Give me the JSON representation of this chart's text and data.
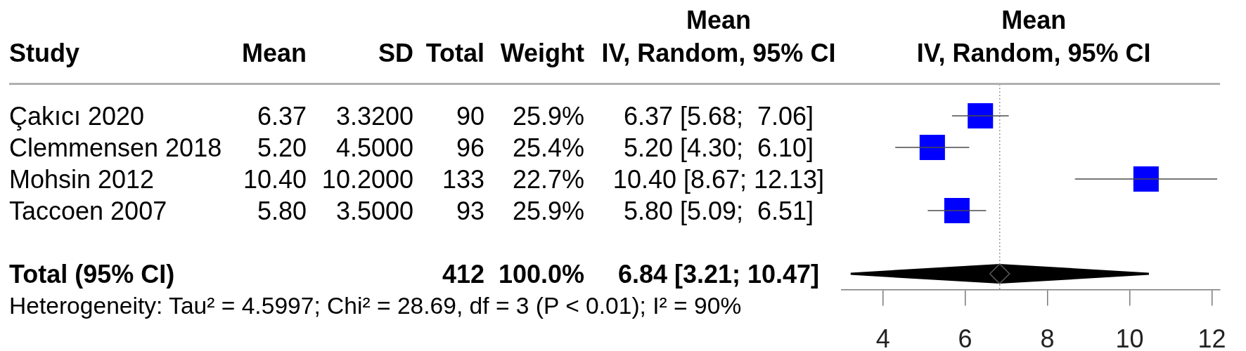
{
  "chart_data": {
    "type": "scatter",
    "orientation": "horizontal",
    "categories": [
      null,
      null,
      null,
      null,
      null,
      null
    ],
    "series": [
      {
        "marker": "square",
        "color": "#0000ff",
        "values": [
          6.37,
          5.2,
          10.4,
          5.8,
          null,
          null
        ],
        "errors": [
          [
            5.68,
            7.06
          ],
          [
            4.3,
            6.1
          ],
          [
            8.67,
            12.13
          ],
          [
            5.09,
            6.51
          ],
          null,
          null
        ]
      },
      {
        "marker": "diamond",
        "color": "#000000",
        "values": [
          null,
          null,
          null,
          null,
          null,
          6.84
        ],
        "errors": [
          null,
          null,
          null,
          null,
          null,
          [
            3.21,
            10.47
          ]
        ]
      }
    ],
    "xlim": [
      3,
      12.2
    ],
    "xticks": [
      4,
      6,
      8,
      10,
      12
    ],
    "ref_lines": [
      {
        "axis": "x",
        "value": 6.84,
        "color": "#999999",
        "line_style": "dotted"
      }
    ],
    "annotations": [
      "Study",
      "Mean",
      "SD",
      "Total",
      "Weight",
      "Mean",
      "IV, Random, 95% CI",
      "Mean",
      "IV, Random, 95% CI",
      "Çakıcı 2020",
      "6.37",
      "3.3200",
      "90",
      "25.9%",
      "6.37 [5.68;  7.06]",
      "Clemmensen 2018",
      "5.20",
      "4.5000",
      "96",
      "25.4%",
      "5.20 [4.30;  6.10]",
      "Mohsin 2012",
      "10.40",
      "10.2000",
      "133",
      "22.7%",
      "10.40 [8.67; 12.13]",
      "Taccoen 2007",
      "5.80",
      "3.5000",
      "93",
      "25.9%",
      "5.80 [5.09;  6.51]",
      "Total (95% CI)",
      "412",
      "100.0%",
      "6.84 [3.21; 10.47]",
      "Heterogeneity: Tau² = 4.5997; Chi² = 28.69, df = 3 (P < 0.01); I² = 90%"
    ]
  }
}
